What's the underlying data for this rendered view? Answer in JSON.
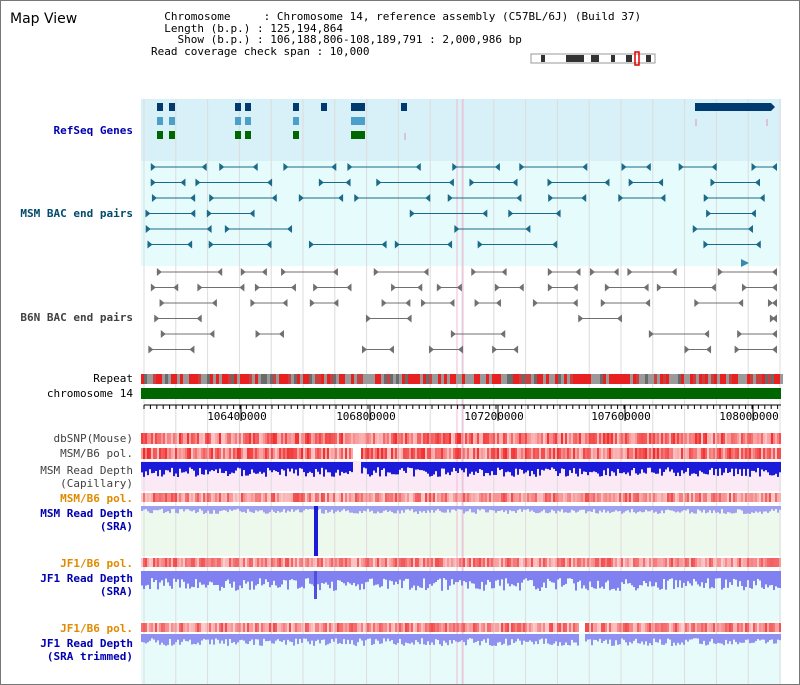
{
  "header": {
    "title": "Map View",
    "info_lines": [
      "  Chromosome     : Chromosome 14, reference assembly (C57BL/6J) (Build 37)",
      "  Length (b.p.) : 125,194,864",
      "    Show (b.p.) : 106,188,806-108,189,791 : 2,000,986 bp",
      "Read coverage check span : 10,000"
    ]
  },
  "tracks": {
    "refseq": "RefSeq Genes",
    "msm_bac": "MSM BAC end pairs",
    "b6n_bac": "B6N BAC end pairs",
    "repeat": "Repeat",
    "chromosome": "chromosome 14",
    "dbsnp": "dbSNP(Mouse)",
    "msm_pol1": "MSM/B6 pol.",
    "msm_depth_cap_1": "MSM Read Depth",
    "msm_depth_cap_2": "(Capillary)",
    "msm_pol2": "MSM/B6 pol.",
    "msm_depth_sra_1": "MSM Read Depth",
    "msm_depth_sra_2": "(SRA)",
    "jf1_pol1": "JF1/B6 pol.",
    "jf1_depth_sra_1": "JF1 Read Depth",
    "jf1_depth_sra_2": "(SRA)",
    "jf1_pol2": "JF1/B6 pol.",
    "jf1_depth_trim_1": "JF1 Read Depth",
    "jf1_depth_trim_2": "(SRA trimmed)"
  },
  "axis": {
    "ticks": [
      "106400000",
      "106800000",
      "107200000",
      "107600000",
      "108000000"
    ]
  },
  "colors": {
    "refseq_bg": "#d8f0f8",
    "bac_bg": "#e6fbfb",
    "chrom_green": "#006600",
    "depth_blue": "#1a1ad8",
    "depth_light": "#8080f0",
    "snp_red": "#f03030"
  }
}
